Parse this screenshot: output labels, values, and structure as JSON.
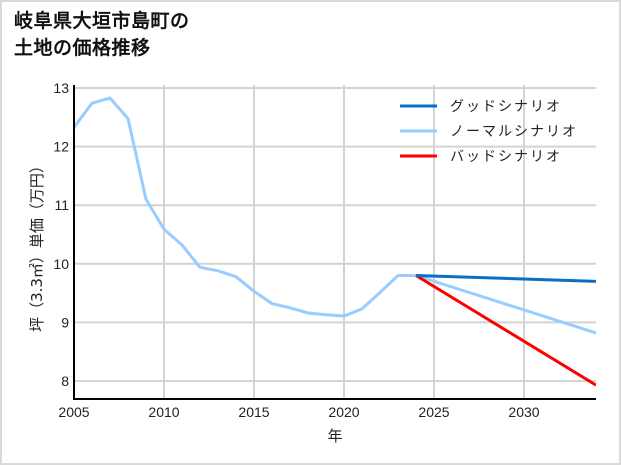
{
  "title_line1": "岐阜県大垣市島町の",
  "title_line2": "土地の価格推移",
  "chart_data": {
    "type": "line",
    "title": "岐阜県大垣市島町の土地の価格推移",
    "xlabel": "年",
    "ylabel": "坪（3.3㎡）単価（万円）",
    "xlim": [
      2005,
      2034
    ],
    "ylim": [
      7.7,
      13.05
    ],
    "x_ticks": [
      2005,
      2010,
      2015,
      2020,
      2025,
      2030
    ],
    "y_ticks": [
      8,
      9,
      10,
      11,
      12,
      13
    ],
    "grid": true,
    "legend_position": "upper right",
    "series": [
      {
        "name": "グッドシナリオ",
        "color": "#0a6fc4",
        "x": [
          2024,
          2034
        ],
        "values": [
          9.8,
          9.7
        ]
      },
      {
        "name": "ノーマルシナリオ",
        "color": "#99ccff",
        "x": [
          2005,
          2006,
          2007,
          2008,
          2009,
          2010,
          2011,
          2012,
          2013,
          2014,
          2015,
          2016,
          2017,
          2018,
          2019,
          2020,
          2021,
          2022,
          2023,
          2024,
          2034
        ],
        "values": [
          12.33,
          12.74,
          12.83,
          12.48,
          11.1,
          10.59,
          10.32,
          9.94,
          9.88,
          9.78,
          9.53,
          9.32,
          9.25,
          9.16,
          9.13,
          9.11,
          9.23,
          9.51,
          9.8,
          9.8,
          8.82
        ]
      },
      {
        "name": "バッドシナリオ",
        "color": "#ff0000",
        "x": [
          2024,
          2034
        ],
        "values": [
          9.8,
          7.93
        ]
      }
    ]
  }
}
